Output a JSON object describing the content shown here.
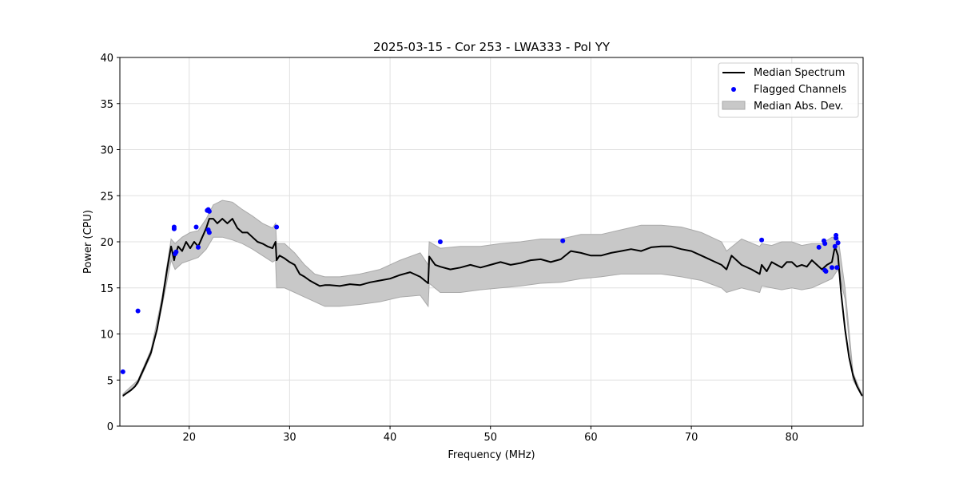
{
  "chart_data": {
    "type": "line",
    "title": "2025-03-15 - Cor 253 - LWA333 - Pol YY",
    "xlabel": "Frequency (MHz)",
    "ylabel": "Power (CPU)",
    "xlim": [
      13.1,
      87.1
    ],
    "ylim": [
      0,
      40
    ],
    "xticks": [
      20,
      30,
      40,
      50,
      60,
      70,
      80
    ],
    "yticks": [
      0,
      5,
      10,
      15,
      20,
      25,
      30,
      35,
      40
    ],
    "grid": true,
    "legend_position": "top-right",
    "legend": [
      {
        "label": "Median Spectrum",
        "kind": "line"
      },
      {
        "label": "Flagged Channels",
        "kind": "marker"
      },
      {
        "label": "Median Abs. Dev.",
        "kind": "band"
      }
    ],
    "colors": {
      "median": "#000000",
      "flagged": "#0000ff",
      "band_fill": "#c8c8c8",
      "band_edge": "#a9a9a9",
      "grid": "#e0e0e0"
    },
    "series": [
      {
        "name": "Median Spectrum",
        "x": [
          13.4,
          13.8,
          14.2,
          14.6,
          14.9,
          15.1,
          15.6,
          16.2,
          16.8,
          17.3,
          17.8,
          18.2,
          18.5,
          18.6,
          18.9,
          19.3,
          19.7,
          20.1,
          20.5,
          20.9,
          21.3,
          21.7,
          22.0,
          22.4,
          22.8,
          23.3,
          23.8,
          24.3,
          24.8,
          25.3,
          25.8,
          26.3,
          26.8,
          27.3,
          27.8,
          28.3,
          28.6,
          28.7,
          29.0,
          29.5,
          30.0,
          30.5,
          31.0,
          31.5,
          32.0,
          32.5,
          33.0,
          33.5,
          34.0,
          35.0,
          36.0,
          37.0,
          38.0,
          39.0,
          40.0,
          41.0,
          42.0,
          43.0,
          43.8,
          43.9,
          44.5,
          45.0,
          46.0,
          47.0,
          48.0,
          49.0,
          50.0,
          51.0,
          52.0,
          53.0,
          54.0,
          55.0,
          56.0,
          57.0,
          58.0,
          59.0,
          60.0,
          61.0,
          62.0,
          63.0,
          64.0,
          65.0,
          66.0,
          67.0,
          68.0,
          69.0,
          70.0,
          71.0,
          72.0,
          73.0,
          73.5,
          74.0,
          75.0,
          76.0,
          76.8,
          77.0,
          77.5,
          78.0,
          78.5,
          79.0,
          79.5,
          80.0,
          80.5,
          81.0,
          81.5,
          82.0,
          82.5,
          83.0,
          83.5,
          84.0,
          84.3,
          84.6,
          84.9,
          85.3,
          85.7,
          86.1,
          86.5,
          87.0
        ],
        "y": [
          3.3,
          3.6,
          3.9,
          4.3,
          4.8,
          5.3,
          6.5,
          8.0,
          10.5,
          13.5,
          17.0,
          19.5,
          18.0,
          18.5,
          19.5,
          19.0,
          20.0,
          19.3,
          20.0,
          19.5,
          20.5,
          21.5,
          22.5,
          22.5,
          22.0,
          22.5,
          22.0,
          22.5,
          21.5,
          21.0,
          21.0,
          20.5,
          20.0,
          19.8,
          19.5,
          19.3,
          20.0,
          18.0,
          18.5,
          18.2,
          17.8,
          17.5,
          16.5,
          16.2,
          15.8,
          15.5,
          15.2,
          15.3,
          15.3,
          15.2,
          15.4,
          15.3,
          15.6,
          15.8,
          16.0,
          16.4,
          16.7,
          16.2,
          15.5,
          18.4,
          17.5,
          17.3,
          17.0,
          17.2,
          17.5,
          17.2,
          17.5,
          17.8,
          17.5,
          17.7,
          18.0,
          18.1,
          17.8,
          18.1,
          19.0,
          18.8,
          18.5,
          18.5,
          18.8,
          19.0,
          19.2,
          19.0,
          19.4,
          19.5,
          19.5,
          19.2,
          19.0,
          18.5,
          18.0,
          17.5,
          17.0,
          18.5,
          17.5,
          17.0,
          16.5,
          17.5,
          16.8,
          17.8,
          17.5,
          17.2,
          17.8,
          17.8,
          17.3,
          17.5,
          17.3,
          18.0,
          17.5,
          17.0,
          17.5,
          17.8,
          19.5,
          18.5,
          14.5,
          10.5,
          7.5,
          5.5,
          4.3,
          3.3
        ]
      },
      {
        "name": "Median Abs. Dev.",
        "x": [
          13.4,
          14.9,
          16.2,
          17.3,
          18.2,
          18.6,
          19.3,
          20.1,
          20.9,
          21.7,
          22.4,
          23.3,
          24.3,
          25.3,
          26.3,
          27.3,
          28.3,
          28.6,
          28.7,
          29.5,
          30.5,
          31.5,
          32.5,
          33.5,
          35.0,
          37.0,
          39.0,
          41.0,
          43.0,
          43.8,
          43.9,
          45.0,
          47.0,
          49.0,
          51.0,
          53.0,
          55.0,
          57.0,
          59.0,
          61.0,
          63.0,
          65.0,
          67.0,
          69.0,
          71.0,
          73.0,
          73.5,
          75.0,
          76.8,
          77.0,
          78.0,
          79.0,
          80.0,
          81.0,
          82.0,
          83.0,
          84.0,
          84.6,
          85.3,
          86.1,
          87.0
        ],
        "upper": [
          3.5,
          5.0,
          8.3,
          14.0,
          20.3,
          19.8,
          20.5,
          21.0,
          21.2,
          22.5,
          24.0,
          24.5,
          24.3,
          23.5,
          22.8,
          22.0,
          21.5,
          22.0,
          19.8,
          19.8,
          18.8,
          17.5,
          16.5,
          16.2,
          16.2,
          16.5,
          17.0,
          18.0,
          18.8,
          17.5,
          20.0,
          19.3,
          19.5,
          19.5,
          19.8,
          20.0,
          20.3,
          20.3,
          20.8,
          20.8,
          21.3,
          21.8,
          21.8,
          21.6,
          21.0,
          20.0,
          19.0,
          20.3,
          19.5,
          19.8,
          19.6,
          20.0,
          20.0,
          19.6,
          19.8,
          19.8,
          20.5,
          20.5,
          15.0,
          5.8,
          3.4
        ],
        "lower": [
          3.2,
          4.6,
          7.7,
          13.0,
          18.0,
          17.0,
          17.7,
          18.0,
          18.3,
          19.2,
          20.5,
          20.5,
          20.2,
          19.8,
          19.2,
          18.5,
          17.8,
          18.0,
          15.0,
          15.0,
          14.5,
          14.0,
          13.5,
          13.0,
          13.0,
          13.2,
          13.5,
          14.0,
          14.2,
          13.0,
          15.5,
          14.5,
          14.5,
          14.8,
          15.0,
          15.2,
          15.5,
          15.6,
          16.0,
          16.2,
          16.5,
          16.5,
          16.5,
          16.2,
          15.8,
          15.0,
          14.5,
          15.0,
          14.5,
          15.2,
          15.0,
          14.8,
          15.0,
          14.8,
          15.0,
          15.5,
          16.0,
          17.0,
          13.8,
          5.0,
          3.2
        ]
      },
      {
        "name": "Flagged Channels",
        "x": [
          13.4,
          14.9,
          18.5,
          18.5,
          18.6,
          18.7,
          20.7,
          20.9,
          21.8,
          21.9,
          22.0,
          21.9,
          22.0,
          28.7,
          45.0,
          57.2,
          77.0,
          82.7,
          83.2,
          83.3,
          83.3,
          83.4,
          84.0,
          84.3,
          84.4,
          84.4,
          84.5,
          84.6
        ],
        "y": [
          5.9,
          12.5,
          21.4,
          21.6,
          18.7,
          18.9,
          21.6,
          19.4,
          23.4,
          23.5,
          23.3,
          21.3,
          21.0,
          21.6,
          20.0,
          20.1,
          20.2,
          19.4,
          20.1,
          19.8,
          16.9,
          16.8,
          17.2,
          19.5,
          20.7,
          20.4,
          17.2,
          19.9
        ]
      }
    ]
  }
}
